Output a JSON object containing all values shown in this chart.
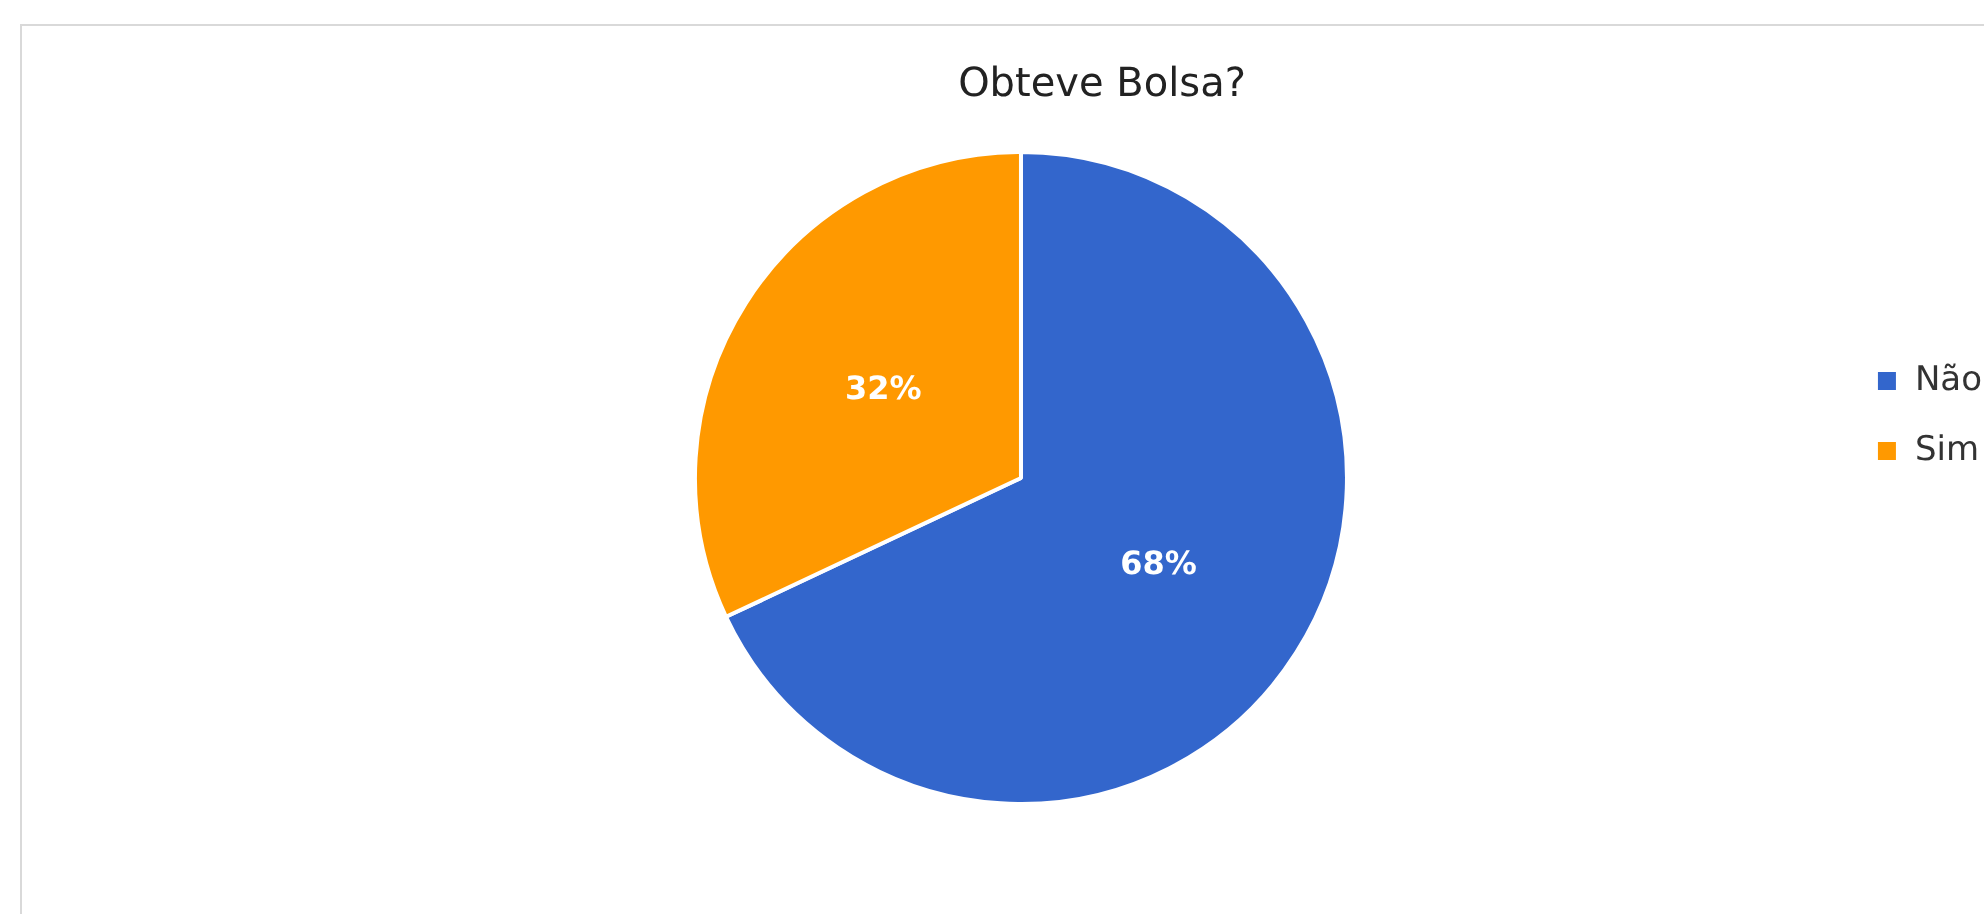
{
  "chart_data": {
    "type": "pie",
    "title": "Obteve Bolsa?",
    "categories": [
      "Não",
      "Sim"
    ],
    "values": [
      68,
      32
    ],
    "colors": [
      "#3366cc",
      "#ff9900"
    ],
    "value_labels": [
      "68%",
      "32%"
    ],
    "legend": "right"
  }
}
